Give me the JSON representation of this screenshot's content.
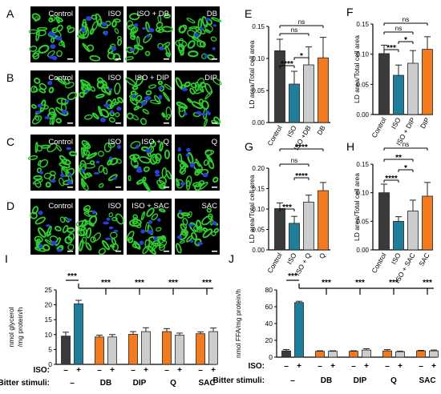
{
  "panels": {
    "letters": [
      "A",
      "B",
      "C",
      "D",
      "E",
      "F",
      "G",
      "H",
      "I",
      "J"
    ],
    "micrograph_rows": [
      {
        "letter": "A",
        "labels": [
          "Control",
          "ISO",
          "ISO + DB",
          "DB"
        ]
      },
      {
        "letter": "B",
        "labels": [
          "Control",
          "ISO",
          "ISO + DIP",
          "DIP"
        ]
      },
      {
        "letter": "C",
        "labels": [
          "Control",
          "ISO",
          "ISO + Q",
          "Q"
        ]
      },
      {
        "letter": "D",
        "labels": [
          "Control",
          "ISO",
          "ISO + SAC",
          "SAC"
        ]
      }
    ]
  },
  "colors": {
    "control": "#3a3a3a",
    "iso": "#1f7f9b",
    "combo": "#cccccc",
    "stim": "#f47a20",
    "micro_bg": "#000000",
    "lipid": "#2ecc2e",
    "nucleus": "#2b3fd6"
  },
  "chart_data": [
    {
      "id": "E",
      "type": "bar",
      "ylabel": "LD area/Total cell area",
      "ylim": [
        0,
        0.15
      ],
      "yticks": [
        "0.00",
        "0.05",
        "0.10",
        "0.15"
      ],
      "categories": [
        "Control",
        "ISO",
        "ISO +DB",
        "DB"
      ],
      "values": [
        0.112,
        0.06,
        0.09,
        0.101
      ],
      "errors": [
        0.018,
        0.02,
        0.028,
        0.032
      ],
      "annotations": [
        "****",
        "*",
        "ns",
        "ns"
      ]
    },
    {
      "id": "F",
      "type": "bar",
      "ylabel": "LD area/Total cell area",
      "ylim": [
        0,
        0.15
      ],
      "yticks": [
        "0.00",
        "0.05",
        "0.10",
        "0.15"
      ],
      "categories": [
        "Control",
        "ISO",
        "ISO + DIP",
        "DIP"
      ],
      "values": [
        0.101,
        0.065,
        0.085,
        0.108
      ],
      "errors": [
        0.014,
        0.017,
        0.021,
        0.021
      ],
      "annotations": [
        "***",
        "*",
        "ns",
        "ns"
      ]
    },
    {
      "id": "G",
      "type": "bar",
      "ylabel": "LD area/Total cell area",
      "ylim": [
        0,
        0.2
      ],
      "yticks": [
        "0.00",
        "0.05",
        "0.10",
        "0.15",
        "0.20"
      ],
      "categories": [
        "Control",
        "ISO",
        "ISO + Q",
        "Q"
      ],
      "values": [
        0.101,
        0.065,
        0.117,
        0.145
      ],
      "errors": [
        0.014,
        0.017,
        0.017,
        0.02
      ],
      "annotations": [
        "***",
        "****",
        "ns",
        "****"
      ]
    },
    {
      "id": "H",
      "type": "bar",
      "ylabel": "LD area/Total cell area",
      "ylim": [
        0,
        0.15
      ],
      "yticks": [
        "0.00",
        "0.05",
        "0.10",
        "0.15"
      ],
      "categories": [
        "Control",
        "ISO",
        "ISO + SAC",
        "SAC"
      ],
      "values": [
        0.1,
        0.05,
        0.068,
        0.094
      ],
      "errors": [
        0.015,
        0.008,
        0.019,
        0.024
      ],
      "annotations": [
        "****",
        "*",
        "**",
        "ns"
      ]
    },
    {
      "id": "I",
      "type": "bar",
      "ylabel_lines": [
        "nmol glycerol",
        "/mg protein/h"
      ],
      "ylim": [
        0,
        25
      ],
      "yticks": [
        "0",
        "5",
        "10",
        "15",
        "20",
        "25"
      ],
      "values": [
        9.5,
        20.3,
        9.2,
        9.2,
        10.1,
        11.0,
        11.0,
        9.8,
        10.3,
        11.0
      ],
      "errors": [
        1.3,
        1.2,
        0.6,
        0.8,
        0.9,
        1.3,
        1.0,
        0.7,
        0.6,
        1.2
      ],
      "annotations": [
        "***",
        "***",
        "***",
        "***",
        "***"
      ],
      "iso_label": "ISO:",
      "iso_signs": [
        "–",
        "+",
        "–",
        "+",
        "–",
        "+",
        "–",
        "+",
        "–",
        "+"
      ],
      "stim_label": "Bitter stimuli:",
      "stimuli": [
        "–",
        "DB",
        "DIP",
        "Q",
        "SAC"
      ]
    },
    {
      "id": "J",
      "type": "bar",
      "ylabel": "nmol FFA/mg protein/h",
      "ylim": [
        0,
        80
      ],
      "yticks": [
        "0",
        "20",
        "40",
        "60",
        "80"
      ],
      "values": [
        7.5,
        65.0,
        7.0,
        7.0,
        7.0,
        8.5,
        7.5,
        6.5,
        7.5,
        7.5
      ],
      "errors": [
        1.6,
        1.5,
        0.6,
        0.6,
        0.6,
        1.5,
        1.5,
        0.7,
        0.6,
        1.0
      ],
      "annotations": [
        "***",
        "***",
        "***",
        "***",
        "***"
      ],
      "iso_label": "ISO:",
      "iso_signs": [
        "–",
        "+",
        "–",
        "+",
        "–",
        "+",
        "–",
        "+",
        "–",
        "+"
      ],
      "stim_label": "Bitter stimuli:",
      "stimuli": [
        "–",
        "DB",
        "DIP",
        "Q",
        "SAC"
      ]
    }
  ]
}
